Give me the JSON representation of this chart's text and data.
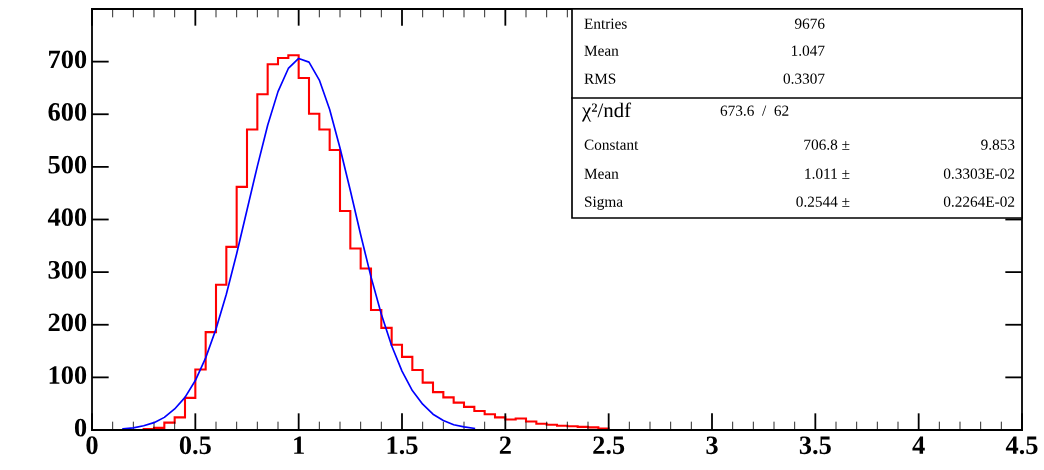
{
  "chart_data": {
    "type": "histogram",
    "bins": [
      0.25,
      0.3,
      0.35,
      0.4,
      0.45,
      0.5,
      0.55,
      0.6,
      0.65,
      0.7,
      0.75,
      0.8,
      0.85,
      0.9,
      0.95,
      1.0,
      1.05,
      1.1,
      1.15,
      1.2,
      1.25,
      1.3,
      1.35,
      1.4,
      1.45,
      1.5,
      1.55,
      1.6,
      1.65,
      1.7,
      1.75,
      1.8,
      1.85,
      1.9,
      1.95,
      2.0,
      2.05,
      2.1,
      2.15,
      2.2,
      2.25,
      2.3,
      2.35,
      2.4,
      2.45,
      2.5
    ],
    "values": [
      2,
      4,
      14,
      24,
      61,
      115,
      186,
      276,
      348,
      462,
      571,
      638,
      695,
      707,
      712,
      669,
      601,
      571,
      532,
      416,
      345,
      307,
      228,
      194,
      162,
      139,
      114,
      90,
      72,
      62,
      52,
      44,
      36,
      30,
      24,
      20,
      22,
      16,
      12,
      10,
      8,
      7,
      6,
      5,
      3
    ],
    "color": "#ff0000",
    "series": [
      {
        "type": "line",
        "color": "#0000ff",
        "x": [
          0.15,
          0.2,
          0.25,
          0.3,
          0.35,
          0.4,
          0.45,
          0.5,
          0.55,
          0.6,
          0.65,
          0.7,
          0.75,
          0.8,
          0.85,
          0.9,
          0.95,
          1.0,
          1.05,
          1.1,
          1.15,
          1.2,
          1.25,
          1.3,
          1.35,
          1.4,
          1.45,
          1.5,
          1.55,
          1.6,
          1.65,
          1.7,
          1.75,
          1.8,
          1.85
        ],
        "values": [
          2,
          4,
          8,
          14,
          24,
          40,
          62,
          94,
          137,
          192,
          258,
          335,
          418,
          501,
          579,
          643,
          687,
          706,
          699,
          665,
          609,
          536,
          455,
          371,
          291,
          220,
          160,
          112,
          75,
          49,
          30,
          18,
          10,
          6,
          3
        ]
      }
    ],
    "xlim": [
      0,
      4.5
    ],
    "xticks": [
      0,
      {
        "value": 0.1,
        "label": null
      },
      {
        "value": 0.2,
        "label": null
      },
      {
        "value": 0.3,
        "label": null
      },
      {
        "value": 0.4,
        "label": null
      },
      0.5,
      {
        "value": 0.6,
        "label": null
      },
      {
        "value": 0.7,
        "label": null
      },
      {
        "value": 0.8,
        "label": null
      },
      {
        "value": 0.9,
        "label": null
      },
      1,
      {
        "value": 1.1,
        "label": null
      },
      {
        "value": 1.2,
        "label": null
      },
      {
        "value": 1.3,
        "label": null
      },
      {
        "value": 1.4,
        "label": null
      },
      1.5,
      {
        "value": 1.6,
        "label": null
      },
      {
        "value": 1.7,
        "label": null
      },
      {
        "value": 1.8,
        "label": null
      },
      {
        "value": 1.9,
        "label": null
      },
      2,
      {
        "value": 2.1,
        "label": null
      },
      {
        "value": 2.2,
        "label": null
      },
      {
        "value": 2.3,
        "label": null
      },
      {
        "value": 2.4,
        "label": null
      },
      2.5,
      {
        "value": 2.6,
        "label": null
      },
      {
        "value": 2.7,
        "label": null
      },
      {
        "value": 2.8,
        "label": null
      },
      {
        "value": 2.9,
        "label": null
      },
      3,
      {
        "value": 3.1,
        "label": null
      },
      {
        "value": 3.2,
        "label": null
      },
      {
        "value": 3.3,
        "label": null
      },
      {
        "value": 3.4,
        "label": null
      },
      3.5,
      {
        "value": 3.6,
        "label": null
      },
      {
        "value": 3.7,
        "label": null
      },
      {
        "value": 3.8,
        "label": null
      },
      {
        "value": 3.9,
        "label": null
      },
      4,
      {
        "value": 4.1,
        "label": null
      },
      {
        "value": 4.2,
        "label": null
      },
      {
        "value": 4.3,
        "label": null
      },
      {
        "value": 4.4,
        "label": null
      },
      4.5
    ],
    "ylim": [
      0,
      800
    ],
    "yticks": [
      0,
      100,
      200,
      300,
      400,
      500,
      600,
      700
    ],
    "grid": false,
    "legend": false,
    "annotations": [
      "Entries",
      "9676",
      "Mean",
      "1.047",
      "RMS",
      "0.3307",
      "χ²/ndf",
      "673.6  /  62",
      "Constant",
      "706.8 ±",
      "9.853",
      "Mean",
      "1.011 ±",
      "0.3303E-02",
      "Sigma",
      "0.2544 ±",
      "0.2264E-02"
    ]
  }
}
